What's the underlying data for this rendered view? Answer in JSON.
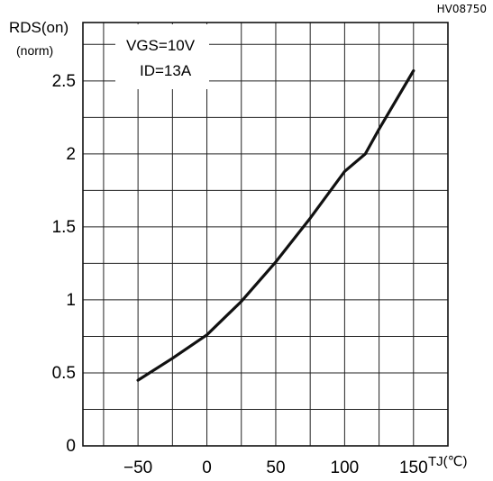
{
  "figure_id": "HV08750",
  "chart_data": {
    "type": "line",
    "xlabel": "TJ(℃)",
    "ylabel": "RDS(on)",
    "ylabel_sub": "(norm)",
    "xlim": [
      -90,
      175
    ],
    "ylim": [
      0,
      2.9
    ],
    "x_ticks": [
      -50,
      0,
      50,
      100,
      150
    ],
    "x_tick_labels": [
      "−50",
      "0",
      "50",
      "100",
      "150"
    ],
    "y_ticks": [
      0,
      0.5,
      1,
      1.5,
      2,
      2.5
    ],
    "y_tick_labels": [
      "0",
      "0.5",
      "1",
      "1.5",
      "2",
      "2.5"
    ],
    "grid": true,
    "annotation": {
      "line1": "VGS=10V",
      "line2": "ID=13A"
    },
    "series": [
      {
        "x": [
          -50,
          -25,
          0,
          25,
          50,
          75,
          100,
          115,
          125,
          150
        ],
        "y": [
          0.45,
          0.6,
          0.76,
          0.99,
          1.26,
          1.56,
          1.88,
          2.0,
          2.17,
          2.57
        ]
      }
    ]
  }
}
